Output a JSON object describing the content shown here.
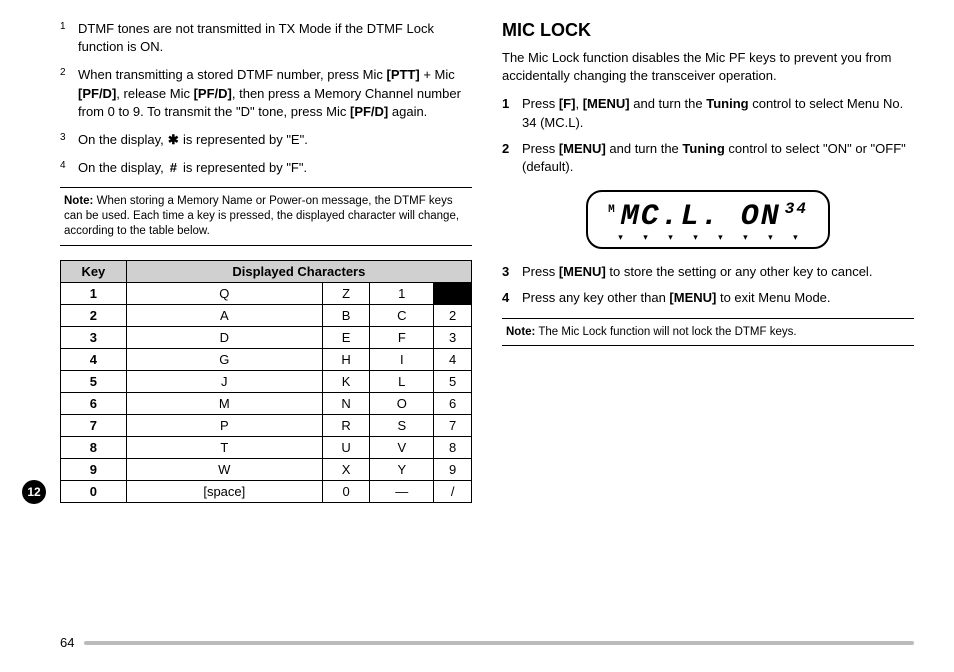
{
  "left": {
    "notes": [
      {
        "num": "1",
        "text_parts": [
          "DTMF tones are not transmitted in TX Mode if the DTMF Lock function is ON."
        ]
      },
      {
        "num": "2",
        "text_parts": [
          "When transmitting a stored DTMF number, press Mic ",
          "<b>[PTT]</b>",
          " + Mic ",
          "<b>[PF/D]</b>",
          ", release Mic ",
          "<b>[PF/D]</b>",
          ", then press a Memory Channel number from 0 to 9.  To transmit the \"D\" tone, press Mic ",
          "<b>[PF/D]</b>",
          " again."
        ]
      },
      {
        "num": "3",
        "text_parts": [
          "On the display, ",
          "<span class='sym'>✱</span>",
          " is represented by \"E\"."
        ]
      },
      {
        "num": "4",
        "text_parts": [
          "On the display, ",
          "<span class='sym'>#</span>",
          " is represented by \"F\"."
        ]
      }
    ],
    "note_box_parts": [
      "<b>Note:</b>",
      "  When storing a Memory Name or Power-on message, the DTMF keys can be used.  Each time a key is pressed, the displayed character will change, according to the table below."
    ],
    "table": {
      "header_key": "Key",
      "header_chars": "Displayed Characters",
      "rows": [
        {
          "key": "1",
          "cells": [
            "Q",
            "Z",
            "1"
          ],
          "lastBlack": true
        },
        {
          "key": "2",
          "cells": [
            "A",
            "B",
            "C",
            "2"
          ]
        },
        {
          "key": "3",
          "cells": [
            "D",
            "E",
            "F",
            "3"
          ]
        },
        {
          "key": "4",
          "cells": [
            "G",
            "H",
            "I",
            "4"
          ]
        },
        {
          "key": "5",
          "cells": [
            "J",
            "K",
            "L",
            "5"
          ]
        },
        {
          "key": "6",
          "cells": [
            "M",
            "N",
            "O",
            "6"
          ]
        },
        {
          "key": "7",
          "cells": [
            "P",
            "R",
            "S",
            "7"
          ]
        },
        {
          "key": "8",
          "cells": [
            "T",
            "U",
            "V",
            "8"
          ]
        },
        {
          "key": "9",
          "cells": [
            "W",
            "X",
            "Y",
            "9"
          ]
        },
        {
          "key": "0",
          "cells": [
            "[space]",
            "0",
            "—",
            "/"
          ]
        }
      ]
    }
  },
  "right": {
    "title": "MIC LOCK",
    "intro": "The Mic Lock function disables the Mic PF keys to prevent you from accidentally changing the transceiver operation.",
    "steps_a": [
      {
        "num": "1",
        "text_parts": [
          "Press ",
          "<b>[F]</b>",
          ", ",
          "<b>[MENU]</b>",
          " and turn the ",
          "<b>Tuning</b>",
          " control to select Menu No. 34 (MC.L)."
        ]
      },
      {
        "num": "2",
        "text_parts": [
          "Press ",
          "<b>[MENU]</b>",
          " and turn the ",
          "<b>Tuning</b>",
          " control to select \"ON\" or \"OFF\" (default)."
        ]
      }
    ],
    "lcd": {
      "small": "M",
      "main": "MC.L.  ON",
      "sup": "34"
    },
    "steps_b": [
      {
        "num": "3",
        "text_parts": [
          "Press ",
          "<b>[MENU]</b>",
          " to store the setting or any other key to cancel."
        ]
      },
      {
        "num": "4",
        "text_parts": [
          "Press any key other than ",
          "<b>[MENU]</b>",
          " to exit Menu Mode."
        ]
      }
    ],
    "note_box_parts": [
      "<b>Note:</b>",
      "  The Mic Lock function will not lock the DTMF keys."
    ]
  },
  "side_tab": "12",
  "page_number": "64"
}
